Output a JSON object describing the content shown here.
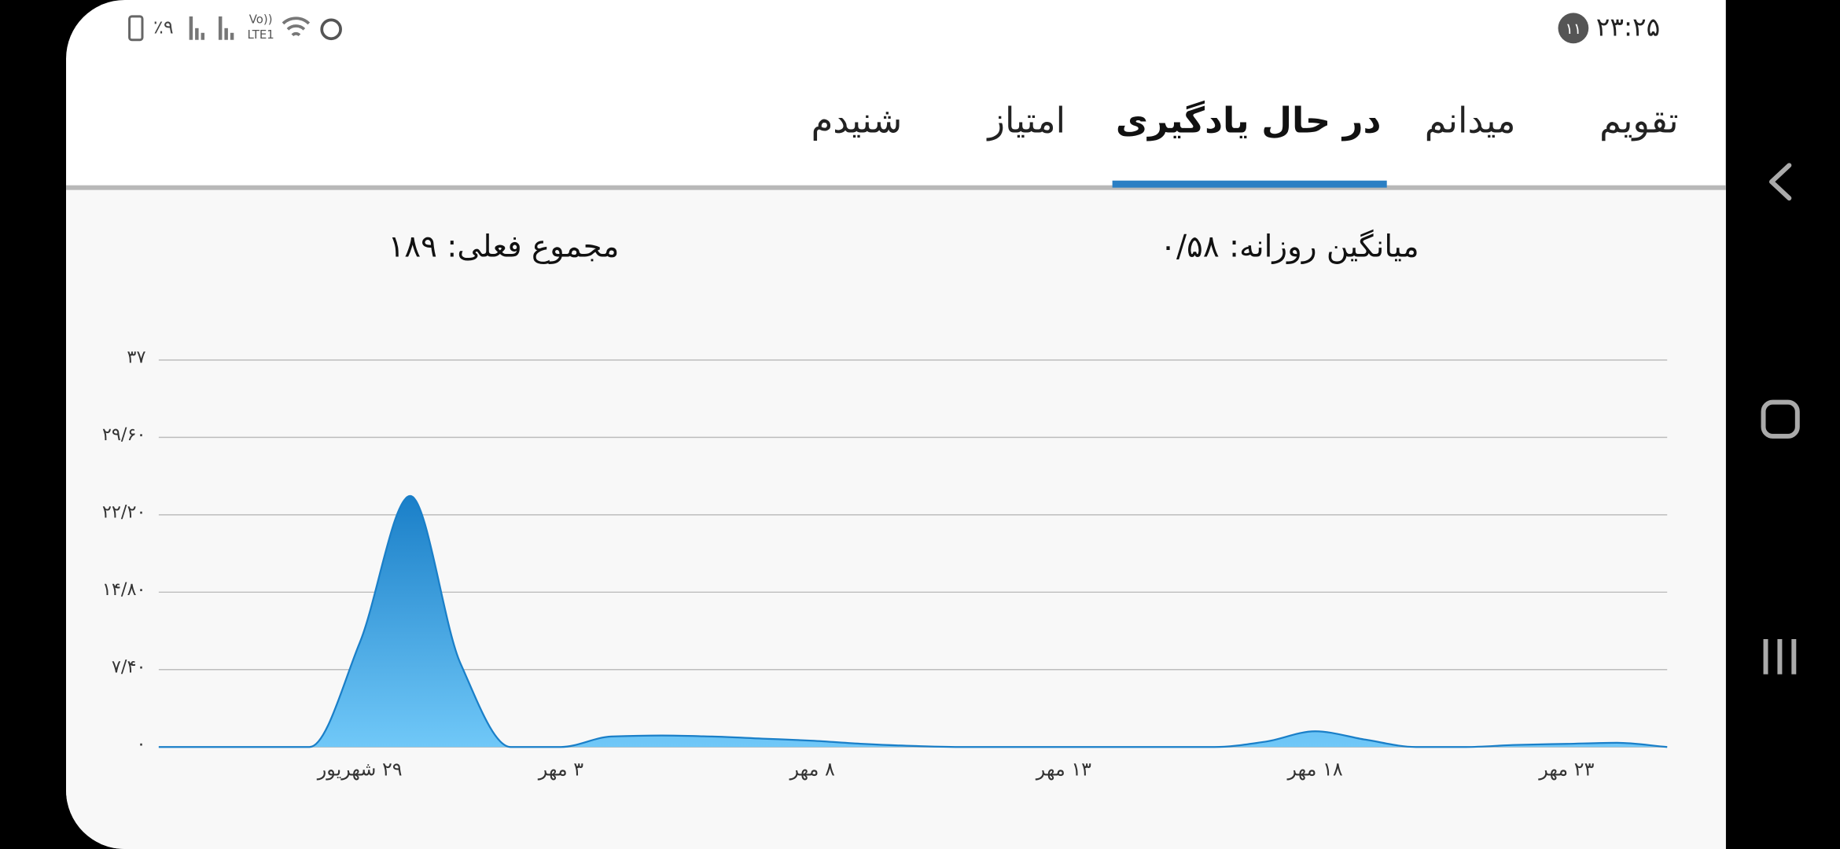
{
  "status_bar": {
    "time": "۲۳:۲۵",
    "badge": "۱۱",
    "battery": "٪۹",
    "volte": "Vo))",
    "lte": "LTE1"
  },
  "tabs": {
    "items": [
      "تقویم",
      "میدانم",
      "در حال یادگیری",
      "امتیاز",
      "شنیدم"
    ],
    "selected": 2
  },
  "summary": {
    "daily_average": "میانگین روزانه: ۰/۵۸",
    "current_total": "مجموع فعلی: ۱۸۹"
  },
  "chart_data": {
    "type": "area",
    "categories": [
      null,
      null,
      null,
      null,
      "۲۹ شهریور",
      null,
      null,
      null,
      "۳ مهر",
      null,
      null,
      null,
      null,
      "۸ مهر",
      null,
      null,
      null,
      null,
      "۱۳ مهر",
      null,
      null,
      null,
      null,
      "۱۸ مهر",
      null,
      null,
      null,
      null,
      "۲۳ مهر",
      null,
      null
    ],
    "series": [
      {
        "color": "#1a7fc8",
        "color_bottom": "#70c8f8",
        "values": [
          0,
          0,
          0,
          0,
          10,
          24,
          8,
          0,
          0,
          1,
          1.1,
          1,
          0.8,
          0.6,
          0.3,
          0.1,
          0,
          0,
          0,
          0,
          0,
          0,
          0.5,
          1.5,
          0.7,
          0,
          0,
          0.2,
          0.3,
          0.4,
          0
        ]
      }
    ],
    "ylim": [
      0,
      37
    ],
    "yticks": [
      {
        "value": 0,
        "label": "۰"
      },
      {
        "value": 7.4,
        "label": "۷/۴۰"
      },
      {
        "value": 14.8,
        "label": "۱۴/۸۰"
      },
      {
        "value": 22.2,
        "label": "۲۲/۲۰"
      },
      {
        "value": 29.6,
        "label": "۲۹/۶۰"
      },
      {
        "value": 37,
        "label": "۳۷"
      }
    ],
    "grid": true
  }
}
